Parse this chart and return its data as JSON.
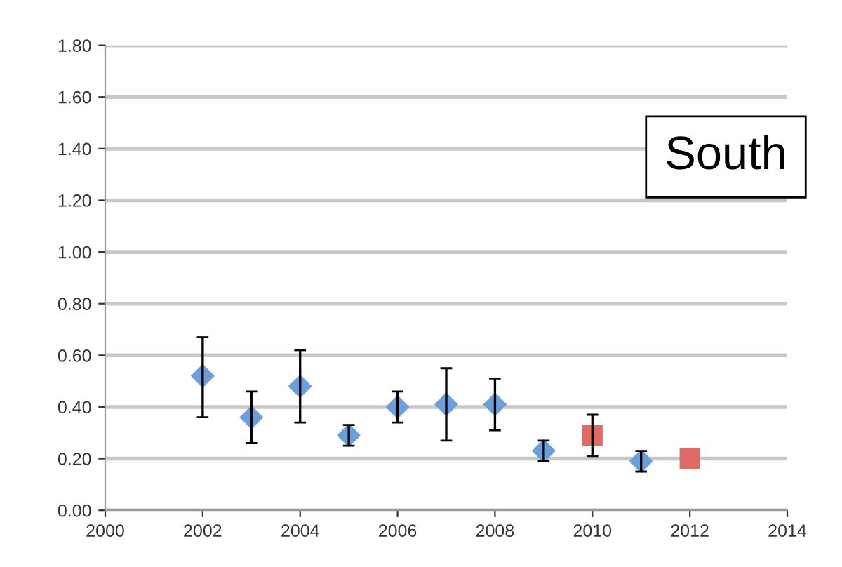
{
  "chart_data": {
    "type": "scatter",
    "annotations": [
      "South"
    ],
    "series": [
      {
        "color": "#6a9fdc",
        "marker": "diamond",
        "x": [
          2002,
          2003,
          2004,
          2005,
          2006,
          2007,
          2008,
          2009,
          2011
        ],
        "values": [
          0.52,
          0.36,
          0.48,
          0.29,
          0.4,
          0.41,
          0.41,
          0.23,
          0.19
        ],
        "errors": [
          [
            0.36,
            0.67
          ],
          [
            0.26,
            0.46
          ],
          [
            0.34,
            0.62
          ],
          [
            0.25,
            0.33
          ],
          [
            0.34,
            0.46
          ],
          [
            0.27,
            0.55
          ],
          [
            0.31,
            0.51
          ],
          [
            0.19,
            0.27
          ],
          [
            0.15,
            0.23
          ]
        ]
      },
      {
        "color": "#e06b66",
        "marker": "square",
        "x": [
          2010,
          2012
        ],
        "values": [
          0.29,
          0.2
        ],
        "errors": [
          [
            0.21,
            0.37
          ],
          null
        ]
      }
    ],
    "xlim": [
      2000,
      2014
    ],
    "xticks": [
      2000,
      2002,
      2004,
      2006,
      2008,
      2010,
      2012,
      2014
    ],
    "ylim": [
      0,
      1.8
    ],
    "yticks": [
      {
        "value": 0,
        "label": "0.00"
      },
      {
        "value": 0.2,
        "label": "0.20"
      },
      {
        "value": 0.4,
        "label": "0.40"
      },
      {
        "value": 0.6,
        "label": "0.60"
      },
      {
        "value": 0.8,
        "label": "0.80"
      },
      {
        "value": 1.0,
        "label": "1.00"
      },
      {
        "value": 1.2,
        "label": "1.20"
      },
      {
        "value": 1.4,
        "label": "1.40"
      },
      {
        "value": 1.6,
        "label": "1.60"
      },
      {
        "value": 1.8,
        "label": "1.80"
      }
    ],
    "grid": "y",
    "legend": false
  }
}
